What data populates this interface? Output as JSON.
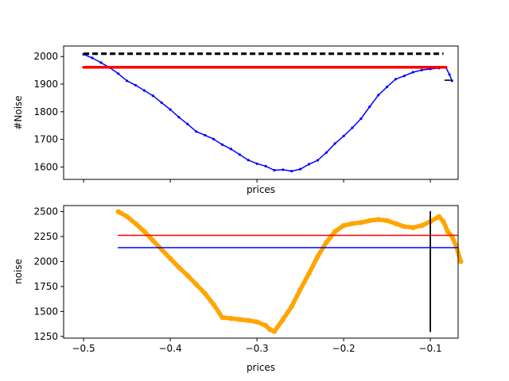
{
  "chart_data": [
    {
      "type": "line",
      "xlabel": "prices",
      "ylabel": "#Noise",
      "xlim": [
        -0.523,
        -0.068
      ],
      "ylim": [
        1555,
        2038
      ],
      "show_x_tick_labels": false,
      "x_ticks": [
        -0.5,
        -0.4,
        -0.3,
        -0.2,
        -0.1
      ],
      "y_ticks": [
        1600,
        1700,
        1800,
        1900,
        2000
      ],
      "y_tick_labels": [
        "1600",
        "1700",
        "1800",
        "1900",
        "2000"
      ],
      "series": [
        {
          "color": "#0000ff",
          "style": "line-markers",
          "x": [
            -0.5,
            -0.49,
            -0.48,
            -0.47,
            -0.46,
            -0.45,
            -0.44,
            -0.43,
            -0.42,
            -0.41,
            -0.4,
            -0.39,
            -0.38,
            -0.37,
            -0.36,
            -0.35,
            -0.34,
            -0.33,
            -0.32,
            -0.31,
            -0.3,
            -0.29,
            -0.28,
            -0.27,
            -0.26,
            -0.25,
            -0.24,
            -0.23,
            -0.22,
            -0.21,
            -0.2,
            -0.19,
            -0.18,
            -0.17,
            -0.16,
            -0.15,
            -0.14,
            -0.13,
            -0.12,
            -0.11,
            -0.1,
            -0.09,
            -0.082,
            -0.078,
            -0.075
          ],
          "y": [
            2008,
            1995,
            1978,
            1960,
            1938,
            1912,
            1896,
            1877,
            1858,
            1833,
            1808,
            1780,
            1755,
            1728,
            1715,
            1701,
            1681,
            1665,
            1645,
            1625,
            1612,
            1603,
            1588,
            1590,
            1585,
            1592,
            1610,
            1624,
            1652,
            1685,
            1712,
            1742,
            1775,
            1818,
            1860,
            1890,
            1918,
            1930,
            1943,
            1951,
            1955,
            1958,
            1960,
            1935,
            1912
          ]
        },
        {
          "color": "#ff0000",
          "style": "thick-line",
          "x": [
            -0.5,
            -0.082
          ],
          "y": [
            1961,
            1961
          ]
        },
        {
          "color": "#000000",
          "style": "dashed",
          "x": [
            -0.5,
            -0.085
          ],
          "y": [
            2010,
            2010
          ]
        },
        {
          "color": "#000000",
          "style": "line",
          "x": [
            -0.083,
            -0.077
          ],
          "y": [
            1914,
            1914
          ]
        }
      ]
    },
    {
      "type": "scatter",
      "xlabel": "prices",
      "ylabel": "noise",
      "xlim": [
        -0.523,
        -0.068
      ],
      "ylim": [
        1233,
        2560
      ],
      "x_ticks": [
        -0.5,
        -0.4,
        -0.3,
        -0.2,
        -0.1
      ],
      "x_tick_labels": [
        "−0.5",
        "−0.4",
        "−0.3",
        "−0.2",
        "−0.1"
      ],
      "y_ticks": [
        1250,
        1500,
        1750,
        2000,
        2250,
        2500
      ],
      "y_tick_labels": [
        "1250",
        "1500",
        "1750",
        "2000",
        "2250",
        "2500"
      ],
      "series": [
        {
          "color": "#ffa500",
          "style": "thick-markers",
          "x": [
            -0.46,
            -0.45,
            -0.44,
            -0.43,
            -0.42,
            -0.41,
            -0.4,
            -0.39,
            -0.38,
            -0.37,
            -0.36,
            -0.35,
            -0.34,
            -0.33,
            -0.32,
            -0.31,
            -0.3,
            -0.29,
            -0.285,
            -0.28,
            -0.27,
            -0.26,
            -0.25,
            -0.24,
            -0.23,
            -0.22,
            -0.21,
            -0.2,
            -0.19,
            -0.18,
            -0.17,
            -0.16,
            -0.15,
            -0.14,
            -0.13,
            -0.12,
            -0.11,
            -0.1,
            -0.09,
            -0.085,
            -0.08,
            -0.075,
            -0.07,
            -0.065
          ],
          "y": [
            2500,
            2450,
            2380,
            2300,
            2210,
            2120,
            2030,
            1940,
            1860,
            1770,
            1680,
            1570,
            1440,
            1430,
            1420,
            1410,
            1395,
            1360,
            1320,
            1300,
            1420,
            1550,
            1720,
            1880,
            2050,
            2190,
            2300,
            2360,
            2380,
            2390,
            2410,
            2420,
            2410,
            2380,
            2350,
            2340,
            2360,
            2400,
            2450,
            2400,
            2300,
            2250,
            2150,
            2000
          ]
        },
        {
          "color": "#ff0000",
          "style": "line",
          "x": [
            -0.46,
            -0.069
          ],
          "y": [
            2262,
            2262
          ]
        },
        {
          "color": "#0000ff",
          "style": "line",
          "x": [
            -0.46,
            -0.069
          ],
          "y": [
            2139,
            2139
          ]
        },
        {
          "color": "#000000",
          "style": "vertical-line",
          "x": [
            -0.1,
            -0.1
          ],
          "y": [
            1300,
            2500
          ]
        }
      ]
    }
  ]
}
